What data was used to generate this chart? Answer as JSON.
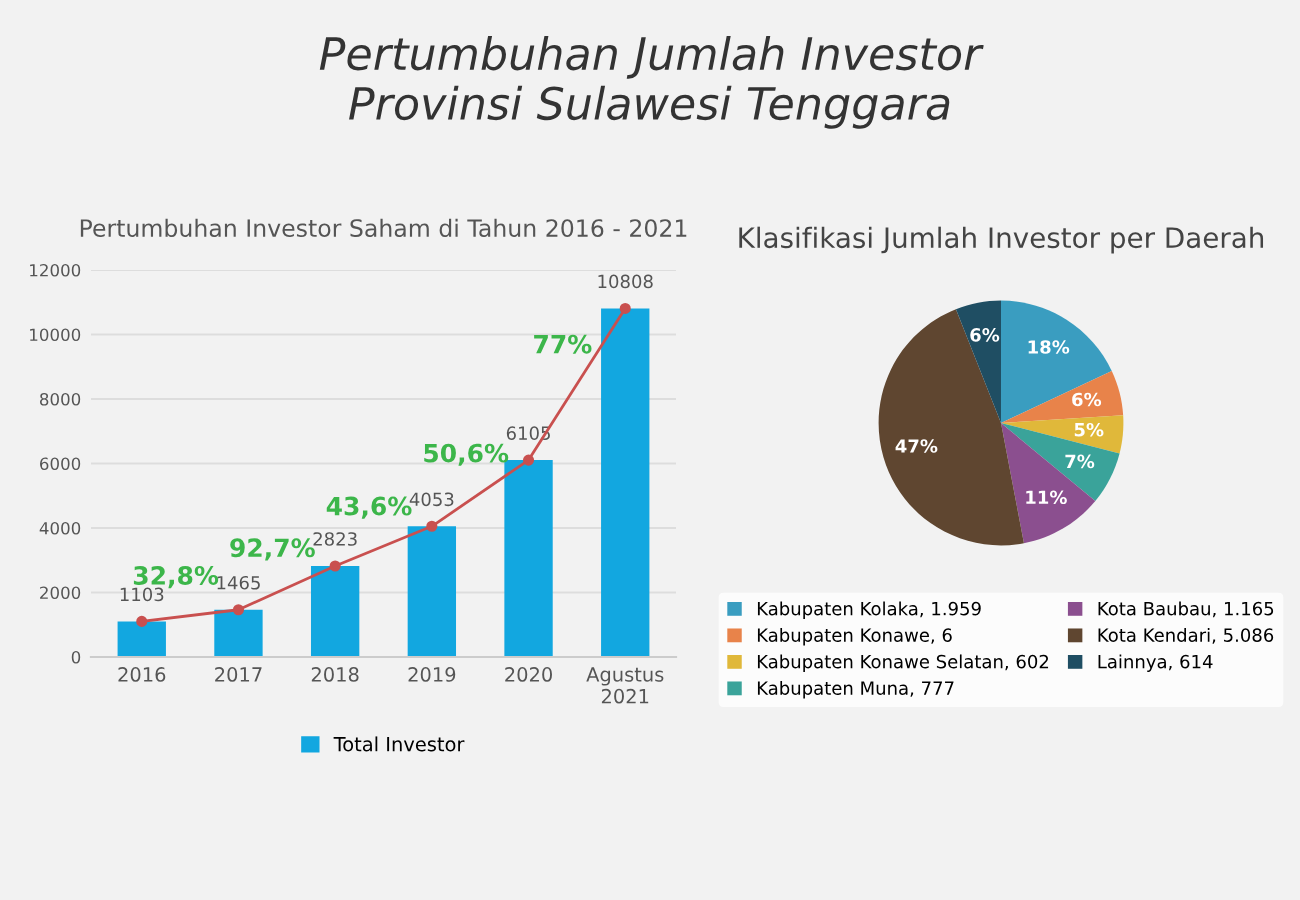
{
  "chart_data": [
    {
      "type": "bar",
      "title": "Pertumbuhan Jumlah Investor\nProvinsi Sulawesi Tenggara",
      "subtitle": "Pertumbuhan Investor Saham di Tahun 2016 - 2021",
      "categories": [
        "2016",
        "2017",
        "2018",
        "2019",
        "2020",
        "Agustus\n2021"
      ],
      "series": [
        {
          "name": "Total Investor",
          "type": "bar",
          "color": "#12a7e0",
          "values": [
            1103,
            1465,
            2823,
            4053,
            6105,
            10808
          ],
          "value_labels": [
            "1103",
            "1465",
            "2823",
            "4053",
            "6105",
            "10808"
          ]
        },
        {
          "type": "line",
          "color": "#c9504f",
          "marker": "circle",
          "values": [
            1103,
            1465,
            2823,
            4053,
            6105,
            10808
          ]
        }
      ],
      "annotations": [
        "32,8%",
        "92,7%",
        "43,6%",
        "50,6%",
        "77%"
      ],
      "ylim": [
        0,
        12000
      ],
      "yticks": [
        0,
        2000,
        4000,
        6000,
        8000,
        10000,
        12000
      ],
      "grid": "y",
      "legend": "bottom"
    },
    {
      "type": "pie",
      "title": "Klasifikasi Jumlah Investor per Daerah",
      "categories": [
        "Kabupaten Kolaka, 1.959",
        "Kabupaten Konawe, 6",
        "Kabupaten Konawe Selatan, 602",
        "Kabupaten Muna, 777",
        "Kota Baubau, 1.165",
        "Kota Kendari, 5.086",
        "Lainnya, 614"
      ],
      "values": [
        18,
        6,
        5,
        7,
        11,
        47,
        6
      ],
      "colors": [
        "#3a9dc0",
        "#e8834a",
        "#e0b83a",
        "#3aa39a",
        "#8b4f8f",
        "#5f4630",
        "#1f4e63"
      ],
      "value_labels": [
        "18%",
        "6%",
        "5%",
        "7%",
        "11%",
        "47%",
        "6%"
      ],
      "legend": "bottom"
    }
  ]
}
